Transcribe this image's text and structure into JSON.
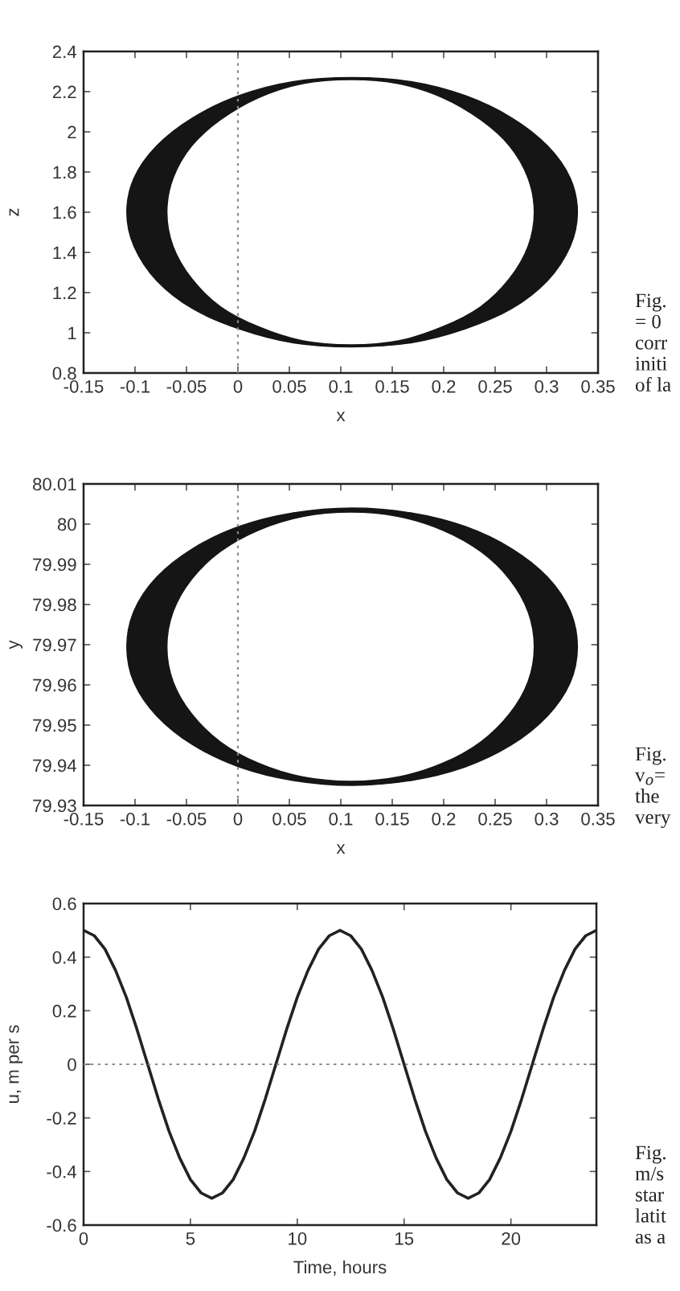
{
  "chart_data": [
    {
      "type": "area",
      "xlabel": "x",
      "ylabel": "z",
      "xlim": [
        -0.15,
        0.35
      ],
      "ylim": [
        0.8,
        2.4
      ],
      "xticks": [
        -0.15,
        -0.1,
        -0.05,
        0,
        0.05,
        0.1,
        0.15,
        0.2,
        0.25,
        0.3,
        0.35
      ],
      "yticks": [
        0.8,
        1,
        1.2,
        1.4,
        1.6,
        1.8,
        2,
        2.2,
        2.4
      ],
      "series": [
        {
          "type": "area",
          "color": "#151515",
          "x": [
            0.33,
            0.323,
            0.301,
            0.266,
            0.221,
            0.168,
            0.111,
            0.054,
            0.001,
            -0.044,
            -0.079,
            -0.101,
            -0.108,
            -0.101,
            -0.079,
            -0.044,
            0.001,
            0.054,
            0.111,
            0.168,
            0.221,
            0.266,
            0.301,
            0.323,
            0.33,
            null,
            0.288,
            0.282,
            0.264,
            0.236,
            0.199,
            0.156,
            0.11,
            0.063,
            0.02,
            -0.017,
            -0.045,
            -0.063,
            -0.069,
            -0.063,
            -0.045,
            -0.017,
            0.02,
            0.063,
            0.11,
            0.156,
            0.199,
            0.236,
            0.264,
            0.282,
            0.288
          ],
          "values": [
            1.6,
            1.77,
            1.93,
            2.07,
            2.18,
            2.25,
            2.27,
            2.25,
            2.18,
            2.07,
            1.93,
            1.77,
            1.6,
            1.43,
            1.26,
            1.12,
            1.02,
            0.95,
            0.93,
            0.95,
            1.02,
            1.12,
            1.26,
            1.43,
            1.6,
            null,
            1.6,
            1.43,
            1.27,
            1.13,
            1.03,
            0.96,
            0.94,
            0.96,
            1.03,
            1.13,
            1.27,
            1.43,
            1.6,
            1.77,
            1.93,
            2.06,
            2.17,
            2.24,
            2.26,
            2.24,
            2.17,
            2.06,
            1.93,
            1.77,
            1.6
          ]
        }
      ],
      "ref_lines": [
        {
          "axis": "x",
          "value": 0,
          "color": "#8a8a8a",
          "line_style": "dotted"
        }
      ],
      "annotations": [
        "Fig.\n= 0\ncorr\niniti\nof la"
      ]
    },
    {
      "type": "area",
      "xlabel": "x",
      "ylabel": "y",
      "xlim": [
        -0.15,
        0.35
      ],
      "ylim": [
        79.93,
        80.01
      ],
      "xticks": [
        -0.15,
        -0.1,
        -0.05,
        0,
        0.05,
        0.1,
        0.15,
        0.2,
        0.25,
        0.3,
        0.35
      ],
      "yticks": [
        79.93,
        79.94,
        79.95,
        79.96,
        79.97,
        79.98,
        79.99,
        80,
        80.01
      ],
      "series": [
        {
          "type": "area",
          "color": "#151515",
          "x": [
            0.33,
            0.323,
            0.301,
            0.266,
            0.221,
            0.168,
            0.111,
            0.054,
            0.001,
            -0.044,
            -0.079,
            -0.101,
            -0.108,
            -0.101,
            -0.079,
            -0.044,
            0.001,
            0.054,
            0.111,
            0.168,
            0.221,
            0.266,
            0.301,
            0.323,
            0.33,
            null,
            0.288,
            0.282,
            0.264,
            0.236,
            0.199,
            0.156,
            0.11,
            0.063,
            0.02,
            -0.017,
            -0.045,
            -0.063,
            -0.069,
            -0.063,
            -0.045,
            -0.017,
            0.02,
            0.063,
            0.11,
            0.156,
            0.199,
            0.236,
            0.264,
            0.282,
            0.288
          ],
          "values": [
            79.9695,
            79.9784,
            79.9868,
            79.9939,
            79.9994,
            80.0028,
            80.004,
            80.0028,
            79.9994,
            79.9939,
            79.9868,
            79.9784,
            79.9695,
            79.9606,
            79.9523,
            79.9451,
            79.9396,
            79.9362,
            79.935,
            79.9362,
            79.9396,
            79.9451,
            79.9523,
            79.9606,
            79.9695,
            null,
            79.9695,
            79.9608,
            79.9528,
            79.9458,
            79.9405,
            79.9371,
            79.936,
            79.9371,
            79.9405,
            79.9458,
            79.9528,
            79.9608,
            79.9695,
            79.9782,
            79.9863,
            79.9932,
            79.9985,
            80.0019,
            80.003,
            80.0019,
            79.9985,
            79.9932,
            79.9863,
            79.9782,
            79.9695
          ]
        }
      ],
      "ref_lines": [
        {
          "axis": "x",
          "value": 0,
          "color": "#8a8a8a",
          "line_style": "dotted"
        }
      ],
      "annotations": [
        "Fig.\nv$_{o}$=\nthe\nvery"
      ]
    },
    {
      "type": "line",
      "xlabel": "Time, hours",
      "ylabel": "u, m per s",
      "xlim": [
        0,
        24
      ],
      "ylim": [
        -0.6,
        0.6
      ],
      "xticks": [
        0,
        5,
        10,
        15,
        20
      ],
      "yticks": [
        -0.6,
        -0.4,
        -0.2,
        0,
        0.2,
        0.4,
        0.6
      ],
      "line_style": "solid",
      "series": [
        {
          "color": "#222222",
          "x": [
            0,
            0.5,
            1,
            1.5,
            2,
            2.5,
            3,
            3.5,
            4,
            4.5,
            5,
            5.5,
            6,
            6.5,
            7,
            7.5,
            8,
            8.5,
            9,
            9.5,
            10,
            10.5,
            11,
            11.5,
            12,
            12.5,
            13,
            13.5,
            14,
            14.5,
            15,
            15.5,
            16,
            16.5,
            17,
            17.5,
            18,
            18.5,
            19,
            19.5,
            20,
            20.5,
            21,
            21.5,
            22,
            22.5,
            23,
            23.5,
            24
          ],
          "values": [
            0.5,
            0.48,
            0.43,
            0.35,
            0.25,
            0.13,
            0.0,
            -0.13,
            -0.25,
            -0.35,
            -0.43,
            -0.48,
            -0.5,
            -0.48,
            -0.43,
            -0.35,
            -0.25,
            -0.13,
            0.0,
            0.13,
            0.25,
            0.35,
            0.43,
            0.48,
            0.5,
            0.48,
            0.43,
            0.35,
            0.25,
            0.13,
            0.0,
            -0.13,
            -0.25,
            -0.35,
            -0.43,
            -0.48,
            -0.5,
            -0.48,
            -0.43,
            -0.35,
            -0.25,
            -0.13,
            0.0,
            0.13,
            0.25,
            0.35,
            0.43,
            0.48,
            0.5
          ]
        }
      ],
      "ref_lines": [
        {
          "axis": "y",
          "value": 0,
          "color": "#8a8a8a",
          "line_style": "dotted"
        }
      ],
      "annotations": [
        "Fig.\nm/s\nstar\nlatit\nas a"
      ]
    }
  ]
}
